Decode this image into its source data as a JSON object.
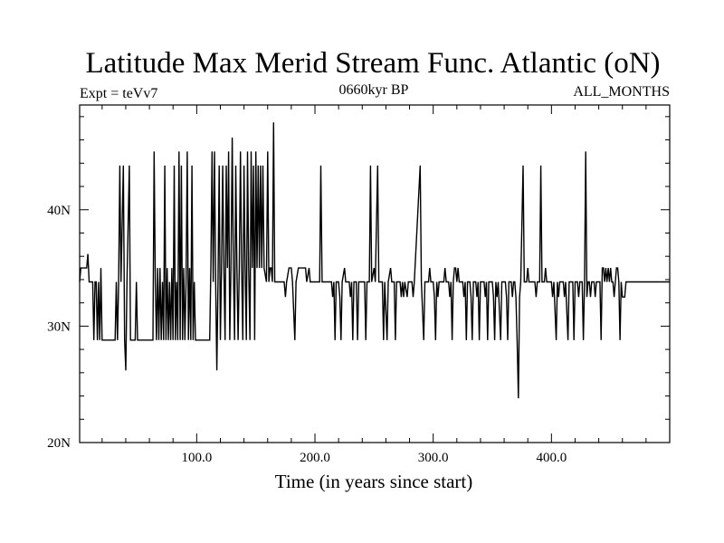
{
  "chart_data": {
    "type": "line",
    "title": "Latitude Max Merid Stream Func. Atlantic (oN)",
    "subtitle_left": "Expt = teVv7",
    "subtitle_center": "0660kyr BP",
    "subtitle_right": "ALL_MONTHS",
    "xlabel": "Time (in years since start)",
    "ylabel": "",
    "xlim": [
      1,
      500
    ],
    "ylim": [
      20,
      49
    ],
    "x_ticks": [
      100,
      200,
      300,
      400
    ],
    "x_tick_labels": [
      "100.0",
      "200.0",
      "300.0",
      "400.0"
    ],
    "y_ticks": [
      20,
      30,
      40
    ],
    "y_tick_labels": [
      "20N",
      "30N",
      "40N"
    ],
    "grid": false,
    "series": [
      {
        "color": "#000000",
        "points": [
          [
            1,
            33.8
          ],
          [
            2,
            35
          ],
          [
            7,
            35
          ],
          [
            8,
            36.2
          ],
          [
            9,
            33.8
          ],
          [
            12,
            33.8
          ],
          [
            13,
            28.8
          ],
          [
            14,
            33.8
          ],
          [
            15,
            33.8
          ],
          [
            16,
            28.8
          ],
          [
            17,
            33.8
          ],
          [
            18,
            28.8
          ],
          [
            19,
            35
          ],
          [
            20,
            28.8
          ],
          [
            31,
            28.8
          ],
          [
            32,
            33.8
          ],
          [
            33,
            28.8
          ],
          [
            34,
            33.8
          ],
          [
            35,
            43.8
          ],
          [
            36,
            33.8
          ],
          [
            38,
            43.8
          ],
          [
            39,
            28.8
          ],
          [
            40,
            26.2
          ],
          [
            41,
            33.8
          ],
          [
            43,
            43.8
          ],
          [
            44,
            28.8
          ],
          [
            46,
            28.8
          ],
          [
            48,
            28.8
          ],
          [
            49,
            33.8
          ],
          [
            50,
            28.8
          ],
          [
            63,
            28.8
          ],
          [
            64,
            45
          ],
          [
            65,
            33.8
          ],
          [
            66,
            28.8
          ],
          [
            67,
            35
          ],
          [
            68,
            28.8
          ],
          [
            69,
            35
          ],
          [
            70,
            28.8
          ],
          [
            71,
            33.8
          ],
          [
            72,
            28.8
          ],
          [
            73,
            43.8
          ],
          [
            74,
            28.8
          ],
          [
            75,
            35
          ],
          [
            76,
            28.8
          ],
          [
            77,
            33.8
          ],
          [
            78,
            28.8
          ],
          [
            79,
            35
          ],
          [
            80,
            28.8
          ],
          [
            81,
            43.8
          ],
          [
            82,
            28.8
          ],
          [
            83,
            33.8
          ],
          [
            84,
            28.8
          ],
          [
            85,
            45
          ],
          [
            86,
            28.8
          ],
          [
            87,
            43.8
          ],
          [
            88,
            28.8
          ],
          [
            89,
            35
          ],
          [
            90,
            28.8
          ],
          [
            91,
            33.8
          ],
          [
            92,
            45
          ],
          [
            93,
            28.8
          ],
          [
            94,
            35
          ],
          [
            95,
            28.8
          ],
          [
            96,
            43.8
          ],
          [
            97,
            28.8
          ],
          [
            98,
            33.8
          ],
          [
            99,
            28.8
          ],
          [
            100,
            28.8
          ],
          [
            111,
            28.8
          ],
          [
            112,
            35
          ],
          [
            113,
            45
          ],
          [
            114,
            33.8
          ],
          [
            115,
            45
          ],
          [
            116,
            33.8
          ],
          [
            117,
            26.2
          ],
          [
            118,
            33.8
          ],
          [
            119,
            43.8
          ],
          [
            120,
            28.8
          ],
          [
            121,
            35
          ],
          [
            122,
            43.8
          ],
          [
            123,
            35
          ],
          [
            124,
            28.8
          ],
          [
            125,
            43.8
          ],
          [
            126,
            35
          ],
          [
            127,
            45
          ],
          [
            128,
            28.8
          ],
          [
            129,
            35
          ],
          [
            130,
            46.2
          ],
          [
            131,
            35
          ],
          [
            132,
            28.8
          ],
          [
            133,
            43.8
          ],
          [
            134,
            35
          ],
          [
            135,
            28.8
          ],
          [
            136,
            35
          ],
          [
            137,
            45
          ],
          [
            138,
            35
          ],
          [
            139,
            28.8
          ],
          [
            140,
            43.8
          ],
          [
            141,
            35
          ],
          [
            142,
            28.8
          ],
          [
            143,
            45
          ],
          [
            144,
            35
          ],
          [
            145,
            28.8
          ],
          [
            146,
            45
          ],
          [
            147,
            35
          ],
          [
            148,
            43.8
          ],
          [
            149,
            28.8
          ],
          [
            150,
            45
          ],
          [
            151,
            35
          ],
          [
            152,
            43.8
          ],
          [
            153,
            35
          ],
          [
            154,
            43.8
          ],
          [
            155,
            35
          ],
          [
            156,
            43.8
          ],
          [
            157,
            35
          ],
          [
            159,
            33.8
          ],
          [
            160,
            45
          ],
          [
            161,
            33.8
          ],
          [
            162,
            35
          ],
          [
            163,
            35
          ],
          [
            164,
            33.8
          ],
          [
            165,
            47.5
          ],
          [
            166,
            33.8
          ],
          [
            174,
            33.8
          ],
          [
            175,
            32.5
          ],
          [
            176,
            33.8
          ],
          [
            178,
            35
          ],
          [
            180,
            35
          ],
          [
            181,
            33.8
          ],
          [
            183,
            28.8
          ],
          [
            184,
            33.8
          ],
          [
            186,
            35
          ],
          [
            192,
            35
          ],
          [
            193,
            33.8
          ],
          [
            195,
            35
          ],
          [
            196,
            33.8
          ],
          [
            203,
            33.8
          ],
          [
            204,
            33.8
          ],
          [
            205,
            43.8
          ],
          [
            206,
            33.8
          ],
          [
            208,
            33.8
          ],
          [
            209,
            33.8
          ],
          [
            214,
            33.8
          ],
          [
            215,
            32.5
          ],
          [
            216,
            33.8
          ],
          [
            217,
            28.8
          ],
          [
            218,
            33.8
          ],
          [
            220,
            33.8
          ],
          [
            221,
            32.5
          ],
          [
            222,
            28.8
          ],
          [
            223,
            33.8
          ],
          [
            225,
            35
          ],
          [
            226,
            33.8
          ],
          [
            229,
            33.8
          ],
          [
            230,
            32.5
          ],
          [
            231,
            33.8
          ],
          [
            232,
            28.8
          ],
          [
            233,
            33.8
          ],
          [
            235,
            33.8
          ],
          [
            236,
            28.8
          ],
          [
            237,
            33.8
          ],
          [
            242,
            33.8
          ],
          [
            243,
            28.8
          ],
          [
            244,
            33.8
          ],
          [
            246,
            33.8
          ],
          [
            247,
            43.8
          ],
          [
            248,
            33.8
          ],
          [
            250,
            35
          ],
          [
            251,
            33.8
          ],
          [
            253,
            43.8
          ],
          [
            254,
            33.8
          ],
          [
            257,
            33.8
          ],
          [
            258,
            28.8
          ],
          [
            259,
            33.8
          ],
          [
            261,
            28.8
          ],
          [
            262,
            33.8
          ],
          [
            264,
            35
          ],
          [
            265,
            33.8
          ],
          [
            267,
            33.8
          ],
          [
            268,
            28.8
          ],
          [
            269,
            33.8
          ],
          [
            272,
            33.8
          ],
          [
            273,
            32.5
          ],
          [
            274,
            33.8
          ],
          [
            275,
            32.5
          ],
          [
            276,
            33.8
          ],
          [
            278,
            32.5
          ],
          [
            279,
            33.8
          ],
          [
            282,
            33.8
          ],
          [
            283,
            32.5
          ],
          [
            284,
            33.8
          ],
          [
            289,
            43.8
          ],
          [
            290,
            33.8
          ],
          [
            292,
            28.8
          ],
          [
            293,
            33.8
          ],
          [
            296,
            33.8
          ],
          [
            297,
            35
          ],
          [
            298,
            33.8
          ],
          [
            300,
            33.8
          ],
          [
            301,
            32.5
          ],
          [
            302,
            28.8
          ],
          [
            303,
            33.8
          ],
          [
            304,
            32.5
          ],
          [
            305,
            33.8
          ],
          [
            309,
            33.8
          ],
          [
            310,
            35
          ],
          [
            311,
            33.8
          ],
          [
            313,
            33.8
          ],
          [
            314,
            32.5
          ],
          [
            315,
            33.8
          ],
          [
            316,
            28.8
          ],
          [
            317,
            33.8
          ],
          [
            318,
            35
          ],
          [
            319,
            35
          ],
          [
            320,
            33.8
          ],
          [
            321,
            35
          ],
          [
            322,
            33.8
          ],
          [
            325,
            33.8
          ],
          [
            326,
            32.5
          ],
          [
            327,
            33.8
          ],
          [
            328,
            28.8
          ],
          [
            329,
            33.8
          ],
          [
            331,
            33.8
          ],
          [
            332,
            32.5
          ],
          [
            333,
            28.8
          ],
          [
            334,
            33.8
          ],
          [
            336,
            33.8
          ],
          [
            337,
            32.5
          ],
          [
            338,
            33.8
          ],
          [
            339,
            28.8
          ],
          [
            340,
            33.8
          ],
          [
            343,
            33.8
          ],
          [
            344,
            32.5
          ],
          [
            345,
            33.8
          ],
          [
            346,
            28.8
          ],
          [
            347,
            33.8
          ],
          [
            350,
            33.8
          ],
          [
            351,
            32.5
          ],
          [
            352,
            28.8
          ],
          [
            353,
            33.8
          ],
          [
            354,
            32.5
          ],
          [
            355,
            33.8
          ],
          [
            357,
            28.8
          ],
          [
            358,
            33.8
          ],
          [
            361,
            33.8
          ],
          [
            362,
            32.5
          ],
          [
            363,
            28.8
          ],
          [
            364,
            33.8
          ],
          [
            366,
            33.8
          ],
          [
            367,
            32.5
          ],
          [
            368,
            33.8
          ],
          [
            369,
            33.8
          ],
          [
            370,
            32.5
          ],
          [
            371,
            28.8
          ],
          [
            372,
            23.8
          ],
          [
            373,
            32.5
          ],
          [
            374,
            33.8
          ],
          [
            376,
            43.8
          ],
          [
            377,
            33.8
          ],
          [
            379,
            33.8
          ],
          [
            380,
            35
          ],
          [
            381,
            33.8
          ],
          [
            386,
            33.8
          ],
          [
            387,
            32.5
          ],
          [
            388,
            33.8
          ],
          [
            390,
            33.8
          ],
          [
            391,
            43.8
          ],
          [
            392,
            33.8
          ],
          [
            394,
            33.8
          ],
          [
            395,
            35
          ],
          [
            396,
            33.8
          ],
          [
            400,
            33.8
          ],
          [
            401,
            32.5
          ],
          [
            402,
            33.8
          ],
          [
            404,
            28.8
          ],
          [
            405,
            33.8
          ],
          [
            406,
            32.5
          ],
          [
            407,
            33.8
          ],
          [
            410,
            33.8
          ],
          [
            411,
            32.5
          ],
          [
            412,
            33.8
          ],
          [
            414,
            28.8
          ],
          [
            415,
            33.8
          ],
          [
            418,
            33.8
          ],
          [
            419,
            28.8
          ],
          [
            420,
            33.8
          ],
          [
            422,
            33.8
          ],
          [
            423,
            32.5
          ],
          [
            424,
            33.8
          ],
          [
            426,
            33.8
          ],
          [
            427,
            28.8
          ],
          [
            428,
            33.8
          ],
          [
            429,
            45
          ],
          [
            430,
            32.5
          ],
          [
            431,
            33.8
          ],
          [
            432,
            33.8
          ],
          [
            433,
            32.5
          ],
          [
            434,
            33.8
          ],
          [
            436,
            33.8
          ],
          [
            437,
            32.5
          ],
          [
            438,
            33.8
          ],
          [
            441,
            33.8
          ],
          [
            442,
            28.8
          ],
          [
            443,
            35
          ],
          [
            444,
            35
          ],
          [
            445,
            33.8
          ],
          [
            446,
            35
          ],
          [
            447,
            33.8
          ],
          [
            448,
            35
          ],
          [
            449,
            33.8
          ],
          [
            450,
            35
          ],
          [
            451,
            33.8
          ],
          [
            452,
            33.8
          ],
          [
            453,
            32.5
          ],
          [
            454,
            33.8
          ],
          [
            455,
            35
          ],
          [
            456,
            35
          ],
          [
            457,
            33.8
          ],
          [
            458,
            28.8
          ],
          [
            459,
            33.8
          ],
          [
            460,
            32.5
          ],
          [
            461,
            32.5
          ],
          [
            462,
            32.5
          ],
          [
            463,
            33.8
          ],
          [
            466,
            33.8
          ],
          [
            467,
            33.8
          ],
          [
            500,
            33.8
          ]
        ]
      }
    ]
  }
}
